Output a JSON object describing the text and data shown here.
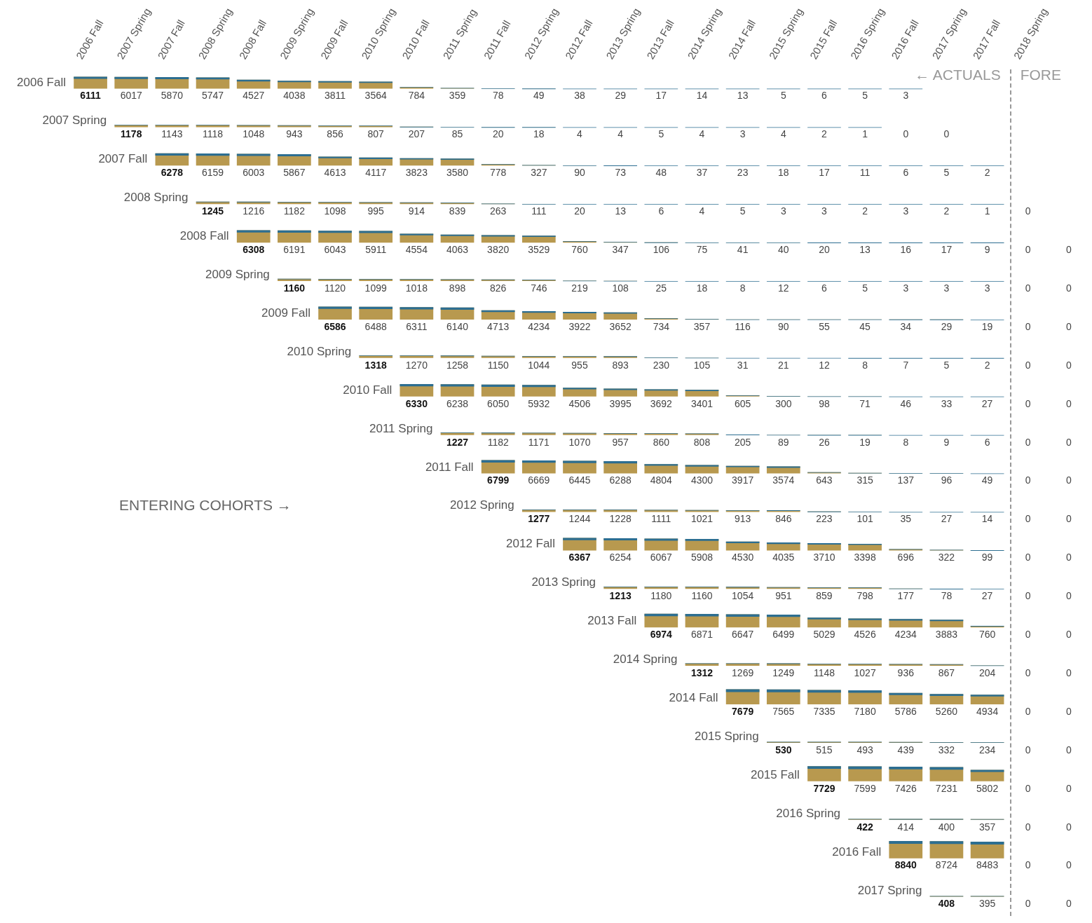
{
  "chart_data": {
    "type": "heatmap",
    "color": "#b8994f",
    "data_labels": true,
    "categories": [
      "2006 Fall",
      "2007 Spring",
      "2007 Fall",
      "2008 Spring",
      "2008 Fall",
      "2009 Spring",
      "2009 Fall",
      "2010 Spring",
      "2010 Fall",
      "2011 Spring",
      "2011 Fall",
      "2012 Spring",
      "2012 Fall",
      "2013 Spring",
      "2013 Fall",
      "2014 Spring",
      "2014 Fall",
      "2015 Spring",
      "2015 Fall",
      "2016 Spring",
      "2016 Fall",
      "2017 Spring",
      "2017 Fall",
      "2018 Spring",
      null
    ],
    "y_categories": [
      "2006 Fall",
      "2007 Spring",
      "2007 Fall",
      "2008 Spring",
      "2008 Fall",
      "2009 Spring",
      "2009 Fall",
      "2010 Spring",
      "2010 Fall",
      "2011 Spring",
      "2011 Fall",
      "2012 Spring",
      "2012 Fall",
      "2013 Spring",
      "2013 Fall",
      "2014 Spring",
      "2014 Fall",
      "2015 Spring",
      "2015 Fall",
      "2016 Spring",
      "2016 Fall",
      "2017 Spring"
    ],
    "cells": [
      [
        6111,
        6017,
        5870,
        5747,
        4527,
        4038,
        3811,
        3564,
        784,
        359,
        78,
        49,
        38,
        29,
        17,
        14,
        13,
        5,
        6,
        5,
        3,
        null,
        null,
        null,
        null
      ],
      [
        null,
        1178,
        1143,
        1118,
        1048,
        943,
        856,
        807,
        207,
        85,
        20,
        18,
        4,
        4,
        5,
        4,
        3,
        4,
        2,
        1,
        0,
        0,
        null,
        null,
        null
      ],
      [
        null,
        null,
        6278,
        6159,
        6003,
        5867,
        4613,
        4117,
        3823,
        3580,
        778,
        327,
        90,
        73,
        48,
        37,
        23,
        18,
        17,
        11,
        6,
        5,
        2,
        null,
        null
      ],
      [
        null,
        null,
        null,
        1245,
        1216,
        1182,
        1098,
        995,
        914,
        839,
        263,
        111,
        20,
        13,
        6,
        4,
        5,
        3,
        3,
        2,
        3,
        2,
        1,
        0,
        null
      ],
      [
        null,
        null,
        null,
        null,
        6308,
        6191,
        6043,
        5911,
        4554,
        4063,
        3820,
        3529,
        760,
        347,
        106,
        75,
        41,
        40,
        20,
        13,
        16,
        17,
        9,
        0,
        0
      ],
      [
        null,
        null,
        null,
        null,
        null,
        1160,
        1120,
        1099,
        1018,
        898,
        826,
        746,
        219,
        108,
        25,
        18,
        8,
        12,
        6,
        5,
        3,
        3,
        3,
        0,
        0
      ],
      [
        null,
        null,
        null,
        null,
        null,
        null,
        6586,
        6488,
        6311,
        6140,
        4713,
        4234,
        3922,
        3652,
        734,
        357,
        116,
        90,
        55,
        45,
        34,
        29,
        19,
        0,
        0
      ],
      [
        null,
        null,
        null,
        null,
        null,
        null,
        null,
        1318,
        1270,
        1258,
        1150,
        1044,
        955,
        893,
        230,
        105,
        31,
        21,
        12,
        8,
        7,
        5,
        2,
        0,
        0
      ],
      [
        null,
        null,
        null,
        null,
        null,
        null,
        null,
        null,
        6330,
        6238,
        6050,
        5932,
        4506,
        3995,
        3692,
        3401,
        605,
        300,
        98,
        71,
        46,
        33,
        27,
        0,
        0
      ],
      [
        null,
        null,
        null,
        null,
        null,
        null,
        null,
        null,
        null,
        1227,
        1182,
        1171,
        1070,
        957,
        860,
        808,
        205,
        89,
        26,
        19,
        8,
        9,
        6,
        0,
        0
      ],
      [
        null,
        null,
        null,
        null,
        null,
        null,
        null,
        null,
        null,
        null,
        6799,
        6669,
        6445,
        6288,
        4804,
        4300,
        3917,
        3574,
        643,
        315,
        137,
        96,
        49,
        0,
        0
      ],
      [
        null,
        null,
        null,
        null,
        null,
        null,
        null,
        null,
        null,
        null,
        null,
        1277,
        1244,
        1228,
        1111,
        1021,
        913,
        846,
        223,
        101,
        35,
        27,
        14,
        0,
        0
      ],
      [
        null,
        null,
        null,
        null,
        null,
        null,
        null,
        null,
        null,
        null,
        null,
        null,
        6367,
        6254,
        6067,
        5908,
        4530,
        4035,
        3710,
        3398,
        696,
        322,
        99,
        0,
        0
      ],
      [
        null,
        null,
        null,
        null,
        null,
        null,
        null,
        null,
        null,
        null,
        null,
        null,
        null,
        1213,
        1180,
        1160,
        1054,
        951,
        859,
        798,
        177,
        78,
        27,
        0,
        0
      ],
      [
        null,
        null,
        null,
        null,
        null,
        null,
        null,
        null,
        null,
        null,
        null,
        null,
        null,
        null,
        6974,
        6871,
        6647,
        6499,
        5029,
        4526,
        4234,
        3883,
        760,
        0,
        0
      ],
      [
        null,
        null,
        null,
        null,
        null,
        null,
        null,
        null,
        null,
        null,
        null,
        null,
        null,
        null,
        null,
        1312,
        1269,
        1249,
        1148,
        1027,
        936,
        867,
        204,
        0,
        0
      ],
      [
        null,
        null,
        null,
        null,
        null,
        null,
        null,
        null,
        null,
        null,
        null,
        null,
        null,
        null,
        null,
        null,
        7679,
        7565,
        7335,
        7180,
        5786,
        5260,
        4934,
        0,
        0
      ],
      [
        null,
        null,
        null,
        null,
        null,
        null,
        null,
        null,
        null,
        null,
        null,
        null,
        null,
        null,
        null,
        null,
        null,
        530,
        515,
        493,
        439,
        332,
        234,
        0,
        0
      ],
      [
        null,
        null,
        null,
        null,
        null,
        null,
        null,
        null,
        null,
        null,
        null,
        null,
        null,
        null,
        null,
        null,
        null,
        null,
        7729,
        7599,
        7426,
        7231,
        5802,
        0,
        0
      ],
      [
        null,
        null,
        null,
        null,
        null,
        null,
        null,
        null,
        null,
        null,
        null,
        null,
        null,
        null,
        null,
        null,
        null,
        null,
        null,
        422,
        414,
        400,
        357,
        0,
        0
      ],
      [
        null,
        null,
        null,
        null,
        null,
        null,
        null,
        null,
        null,
        null,
        null,
        null,
        null,
        null,
        null,
        null,
        null,
        null,
        null,
        null,
        8840,
        8724,
        8483,
        0,
        0
      ],
      [
        null,
        null,
        null,
        null,
        null,
        null,
        null,
        null,
        null,
        null,
        null,
        null,
        null,
        null,
        null,
        null,
        null,
        null,
        null,
        null,
        null,
        408,
        395,
        0,
        0
      ]
    ],
    "annotations": [
      "← ACTUALS",
      "FORE",
      "ENTERING COHORTS →"
    ]
  }
}
